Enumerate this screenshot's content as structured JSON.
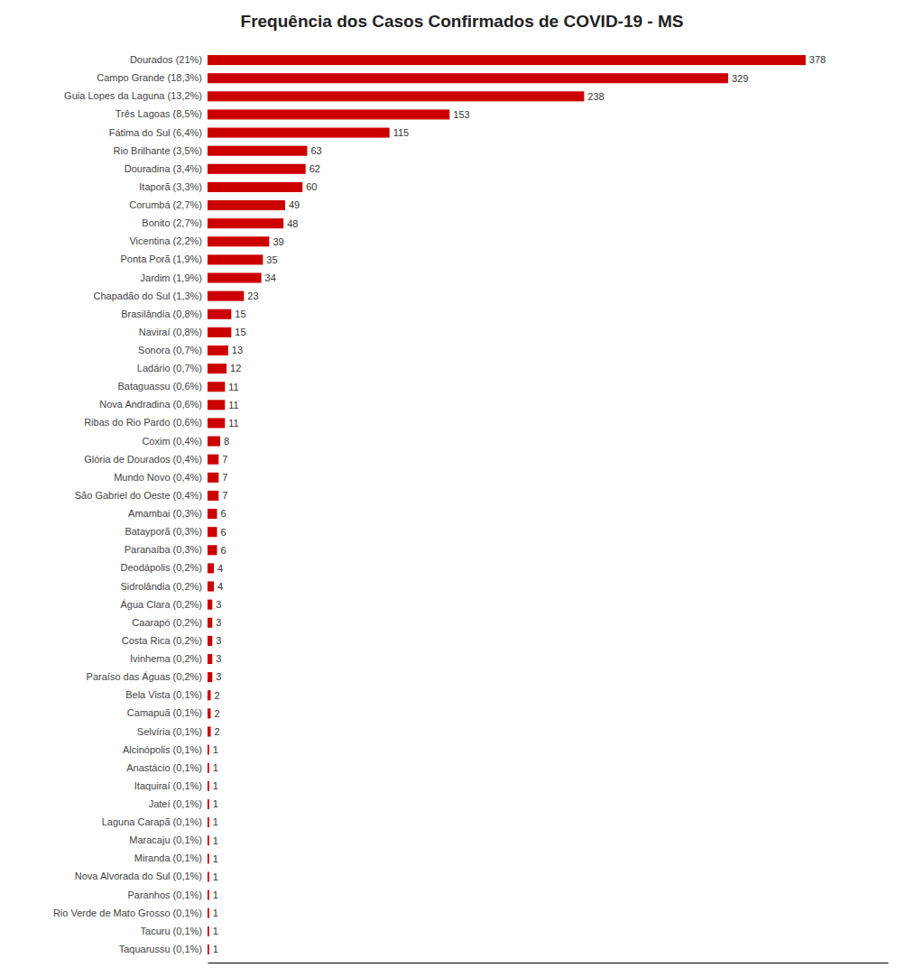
{
  "chart_data": {
    "type": "bar",
    "orientation": "horizontal",
    "title": "Frequência dos Casos Confirmados de COVID-19 - MS",
    "categories": [
      "Dourados (21%)",
      "Campo Grande (18,3%)",
      "Guia Lopes da Laguna (13,2%)",
      "Três Lagoas (8,5%)",
      "Fátima do Sul (6,4%)",
      "Rio Brilhante (3,5%)",
      "Douradina (3,4%)",
      "Itaporã (3,3%)",
      "Corumbá (2,7%)",
      "Bonito (2,7%)",
      "Vicentina (2,2%)",
      "Ponta Porã (1,9%)",
      "Jardim (1,9%)",
      "Chapadão do Sul (1,3%)",
      "Brasilândia (0,8%)",
      "Naviraí (0,8%)",
      "Sonora (0,7%)",
      "Ladário (0,7%)",
      "Bataguassu (0,6%)",
      "Nova Andradina (0,6%)",
      "Ribas do Rio Pardo (0,6%)",
      "Coxim (0,4%)",
      "Glória de Dourados (0,4%)",
      "Mundo Novo (0,4%)",
      "São Gabriel do Oeste (0,4%)",
      "Amambai (0,3%)",
      "Batayporã (0,3%)",
      "Paranaíba (0,3%)",
      "Deodápolis (0,2%)",
      "Sidrolândia (0,2%)",
      "Água Clara (0,2%)",
      "Caarapó (0,2%)",
      "Costa Rica (0,2%)",
      "Ivinhema (0,2%)",
      "Paraíso das Águas (0,2%)",
      "Bela Vista (0,1%)",
      "Camapuã (0,1%)",
      "Selvíria (0,1%)",
      "Alcinópolis (0,1%)",
      "Anastácio (0,1%)",
      "Itaquiraí (0,1%)",
      "Jateí (0,1%)",
      "Laguna Carapã (0,1%)",
      "Maracaju (0,1%)",
      "Miranda (0,1%)",
      "Nova Alvorada do Sul (0,1%)",
      "Paranhos (0,1%)",
      "Rio Verde de Mato Grosso (0,1%)",
      "Tacuru (0,1%)",
      "Taquarussu (0,1%)"
    ],
    "values": [
      378,
      329,
      238,
      153,
      115,
      63,
      62,
      60,
      49,
      48,
      39,
      35,
      34,
      23,
      15,
      15,
      13,
      12,
      11,
      11,
      11,
      8,
      7,
      7,
      7,
      6,
      6,
      6,
      4,
      4,
      3,
      3,
      3,
      3,
      3,
      2,
      2,
      2,
      1,
      1,
      1,
      1,
      1,
      1,
      1,
      1,
      1,
      1,
      1,
      1
    ],
    "color": "#cc0000",
    "xlim": [
      0,
      430
    ],
    "data_labels": true,
    "tick_labels": "y",
    "grid": false
  }
}
